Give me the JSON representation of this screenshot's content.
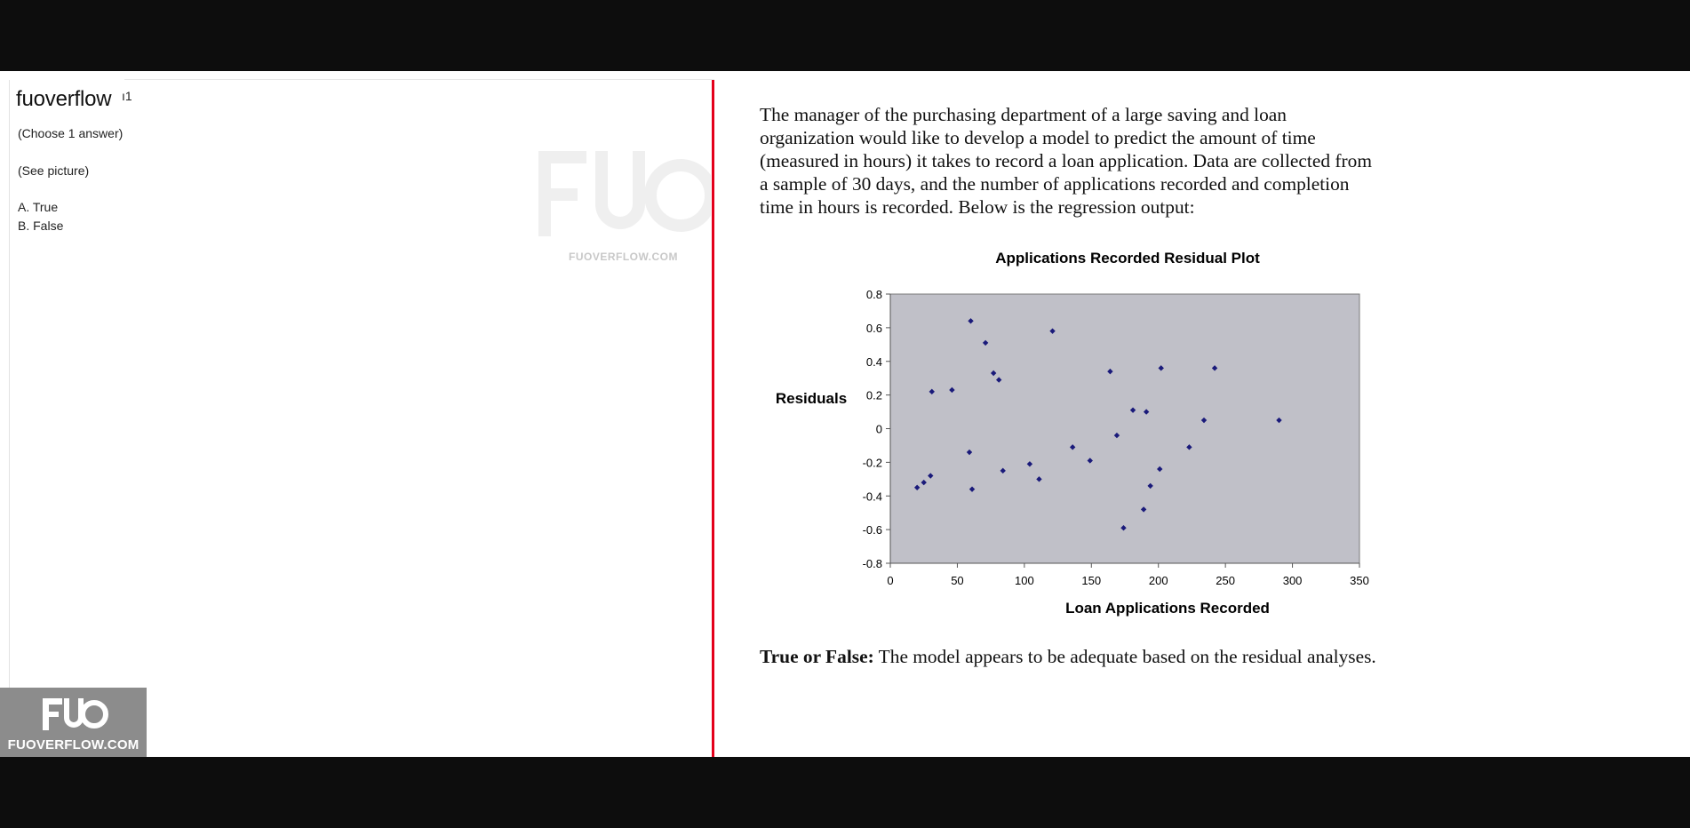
{
  "header": {
    "site_title": "fuoverflow",
    "site_title_suffix": "ı1"
  },
  "question_panel": {
    "choose_text": "(Choose 1 answer)",
    "see_text": "(See picture)",
    "options": [
      {
        "label": "A. True"
      },
      {
        "label": "B. False"
      }
    ],
    "watermark_text": "FUOVERFLOW.COM"
  },
  "logo": {
    "mark": "FUO",
    "text": "FUOVERFLOW.COM"
  },
  "content": {
    "question_text": "The manager of the purchasing department of a large saving and loan organization would like to develop a model to predict the amount of time (measured in hours) it takes to record a loan application. Data are collected from a sample of 30 days, and the number of applications recorded and completion time in hours is recorded. Below is the regression output:",
    "tf_label": "True or False:",
    "tf_text": " The model appears to be adequate based on the residual analyses."
  },
  "colors": {
    "accent_divider": "#e4001b",
    "plot_background": "#c0c0c8",
    "point_color": "#1a1a7a",
    "logo_background": "#8c8c8c"
  },
  "chart_data": {
    "type": "scatter",
    "title": "Applications Recorded  Residual Plot",
    "xlabel": "Loan Applications Recorded",
    "ylabel": "Residuals",
    "xlim": [
      0,
      350
    ],
    "ylim": [
      -0.8,
      0.8
    ],
    "x_ticks": [
      "0",
      "50",
      "100",
      "150",
      "200",
      "250",
      "300",
      "350"
    ],
    "y_ticks": [
      "0.8",
      "0.6",
      "0.4",
      "0.2",
      "0",
      "-0.2",
      "-0.4",
      "-0.6",
      "-0.8"
    ],
    "grid": false,
    "legend": "none",
    "series": [
      {
        "points": [
          {
            "x": 20,
            "y": -0.35
          },
          {
            "x": 25,
            "y": -0.32
          },
          {
            "x": 30,
            "y": -0.28
          },
          {
            "x": 31,
            "y": 0.22
          },
          {
            "x": 46,
            "y": 0.23
          },
          {
            "x": 59,
            "y": -0.14
          },
          {
            "x": 60,
            "y": 0.64
          },
          {
            "x": 61,
            "y": -0.36
          },
          {
            "x": 71,
            "y": 0.51
          },
          {
            "x": 77,
            "y": 0.33
          },
          {
            "x": 81,
            "y": 0.29
          },
          {
            "x": 84,
            "y": -0.25
          },
          {
            "x": 104,
            "y": -0.21
          },
          {
            "x": 111,
            "y": -0.3
          },
          {
            "x": 121,
            "y": 0.58
          },
          {
            "x": 136,
            "y": -0.11
          },
          {
            "x": 149,
            "y": -0.19
          },
          {
            "x": 164,
            "y": 0.34
          },
          {
            "x": 169,
            "y": -0.04
          },
          {
            "x": 174,
            "y": -0.59
          },
          {
            "x": 181,
            "y": 0.11
          },
          {
            "x": 189,
            "y": -0.48
          },
          {
            "x": 191,
            "y": 0.1
          },
          {
            "x": 194,
            "y": -0.34
          },
          {
            "x": 201,
            "y": -0.24
          },
          {
            "x": 202,
            "y": 0.36
          },
          {
            "x": 223,
            "y": -0.11
          },
          {
            "x": 234,
            "y": 0.05
          },
          {
            "x": 242,
            "y": 0.36
          },
          {
            "x": 290,
            "y": 0.05
          }
        ]
      }
    ]
  }
}
